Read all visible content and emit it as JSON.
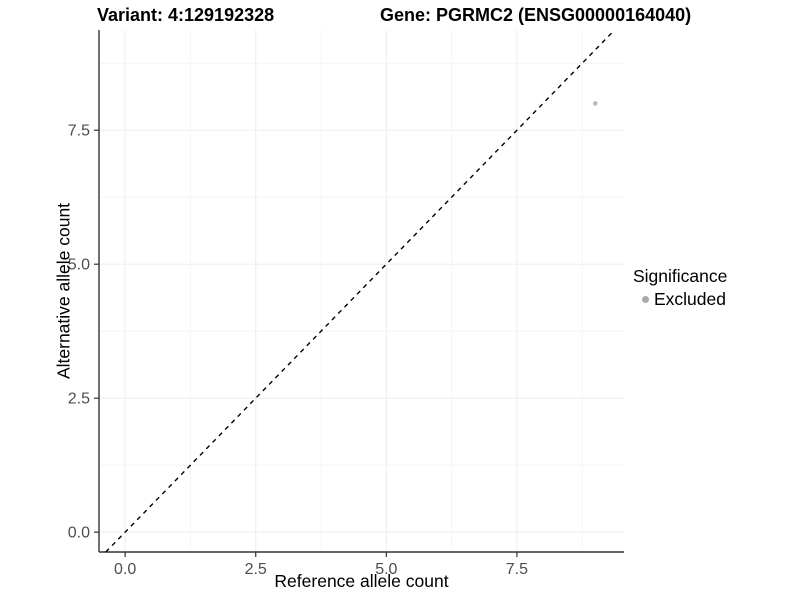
{
  "chart_data": {
    "type": "scatter",
    "title_left": "Variant: 4:129192328",
    "title_right": "Gene: PGRMC2 (ENSG00000164040)",
    "xlabel": "Reference allele count",
    "ylabel": "Alternative allele count",
    "xlim": [
      -0.5,
      9.55
    ],
    "ylim": [
      -0.37,
      9.37
    ],
    "x_ticks": [
      0.0,
      2.5,
      5.0,
      7.5
    ],
    "y_ticks": [
      0.0,
      2.5,
      5.0,
      7.5
    ],
    "x_tick_labels": [
      "0.0",
      "2.5",
      "5.0",
      "7.5"
    ],
    "y_tick_labels": [
      "0.0",
      "2.5",
      "5.0",
      "7.5"
    ],
    "x_minor_ticks": [
      1.25,
      3.75,
      6.25,
      8.75
    ],
    "y_minor_ticks": [
      1.25,
      3.75,
      6.25,
      8.75
    ],
    "grid": true,
    "points": [
      {
        "x": 9,
        "y": 8,
        "series": "Excluded"
      }
    ],
    "identity_line": {
      "style": "dashed",
      "slope": 1,
      "intercept": 0
    },
    "legend": {
      "title": "Significance",
      "position": "right",
      "entries": [
        {
          "label": "Excluded",
          "color": "#b3b3b3"
        }
      ]
    },
    "colors": {
      "point": "#b9b9b9",
      "legend_dot": "#aaaaaa",
      "dashed_line": "#000000",
      "grid_major": "#ededed",
      "grid_minor": "#f4f4f4",
      "axis_line": "#333333",
      "tick_text": "#4d4d4d"
    }
  }
}
